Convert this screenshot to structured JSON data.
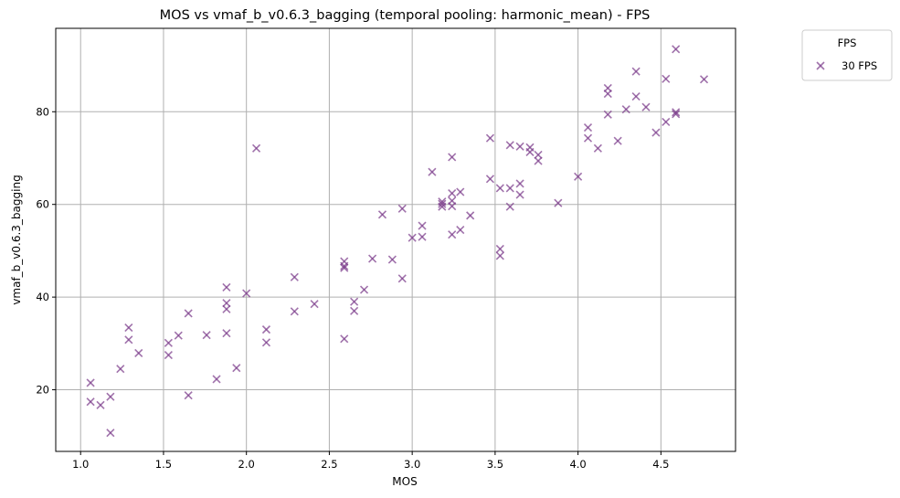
{
  "chart_data": {
    "type": "scatter",
    "title": "MOS vs vmaf_b_v0.6.3_bagging (temporal pooling: harmonic_mean) - FPS",
    "xlabel": "MOS",
    "ylabel": "vmaf_b_v0.6.3_bagging",
    "xlim": [
      0.85,
      4.95
    ],
    "ylim": [
      6.7,
      98
    ],
    "xticks": [
      1.0,
      1.5,
      2.0,
      2.5,
      3.0,
      3.5,
      4.0,
      4.5
    ],
    "xtick_labels": [
      "1.0",
      "1.5",
      "2.0",
      "2.5",
      "3.0",
      "3.5",
      "4.0",
      "4.5"
    ],
    "yticks": [
      20,
      40,
      60,
      80
    ],
    "ytick_labels": [
      "20",
      "40",
      "60",
      "80"
    ],
    "grid": true,
    "legend": {
      "title": "FPS",
      "placement": "outside-top-right"
    },
    "marker": "x",
    "colors": {
      "series": "#7b3c8a"
    },
    "series": [
      {
        "name": "30 FPS",
        "points": [
          [
            1.06,
            21.5
          ],
          [
            1.06,
            17.4
          ],
          [
            1.12,
            16.7
          ],
          [
            1.18,
            18.5
          ],
          [
            1.18,
            10.7
          ],
          [
            1.24,
            24.5
          ],
          [
            1.29,
            33.4
          ],
          [
            1.29,
            30.8
          ],
          [
            1.35,
            27.9
          ],
          [
            1.53,
            30.1
          ],
          [
            1.53,
            27.5
          ],
          [
            1.59,
            31.7
          ],
          [
            1.65,
            36.5
          ],
          [
            1.65,
            18.8
          ],
          [
            1.76,
            31.8
          ],
          [
            1.82,
            22.3
          ],
          [
            1.88,
            42.1
          ],
          [
            1.88,
            38.7
          ],
          [
            1.88,
            37.4
          ],
          [
            1.88,
            32.2
          ],
          [
            1.94,
            24.7
          ],
          [
            2.0,
            40.8
          ],
          [
            2.06,
            72.1
          ],
          [
            2.12,
            33.0
          ],
          [
            2.12,
            30.2
          ],
          [
            2.29,
            44.3
          ],
          [
            2.29,
            36.9
          ],
          [
            2.41,
            38.5
          ],
          [
            2.59,
            47.7
          ],
          [
            2.59,
            46.7
          ],
          [
            2.59,
            46.3
          ],
          [
            2.59,
            31.0
          ],
          [
            2.65,
            39.0
          ],
          [
            2.65,
            37.0
          ],
          [
            2.71,
            41.6
          ],
          [
            2.76,
            48.3
          ],
          [
            2.82,
            57.8
          ],
          [
            2.88,
            48.1
          ],
          [
            2.94,
            59.1
          ],
          [
            2.94,
            44.0
          ],
          [
            3.0,
            52.8
          ],
          [
            3.06,
            55.4
          ],
          [
            3.06,
            53.0
          ],
          [
            3.12,
            67.0
          ],
          [
            3.18,
            60.6
          ],
          [
            3.18,
            60.1
          ],
          [
            3.18,
            59.5
          ],
          [
            3.24,
            70.2
          ],
          [
            3.24,
            62.4
          ],
          [
            3.24,
            60.8
          ],
          [
            3.24,
            59.6
          ],
          [
            3.24,
            53.5
          ],
          [
            3.29,
            62.7
          ],
          [
            3.29,
            54.5
          ],
          [
            3.35,
            57.6
          ],
          [
            3.47,
            74.3
          ],
          [
            3.47,
            65.5
          ],
          [
            3.53,
            63.5
          ],
          [
            3.53,
            50.4
          ],
          [
            3.53,
            48.9
          ],
          [
            3.59,
            72.8
          ],
          [
            3.59,
            63.5
          ],
          [
            3.59,
            59.5
          ],
          [
            3.65,
            72.5
          ],
          [
            3.65,
            64.5
          ],
          [
            3.65,
            62.1
          ],
          [
            3.71,
            72.3
          ],
          [
            3.71,
            71.3
          ],
          [
            3.76,
            70.7
          ],
          [
            3.76,
            69.4
          ],
          [
            3.88,
            60.3
          ],
          [
            4.0,
            66.0
          ],
          [
            4.06,
            76.6
          ],
          [
            4.06,
            74.3
          ],
          [
            4.12,
            72.1
          ],
          [
            4.18,
            85.1
          ],
          [
            4.18,
            83.9
          ],
          [
            4.18,
            79.4
          ],
          [
            4.24,
            73.7
          ],
          [
            4.29,
            80.5
          ],
          [
            4.35,
            88.7
          ],
          [
            4.35,
            83.3
          ],
          [
            4.41,
            81.0
          ],
          [
            4.47,
            75.5
          ],
          [
            4.53,
            87.1
          ],
          [
            4.53,
            77.8
          ],
          [
            4.59,
            93.5
          ],
          [
            4.59,
            79.9
          ],
          [
            4.59,
            79.5
          ],
          [
            4.76,
            87.0
          ]
        ]
      }
    ]
  }
}
